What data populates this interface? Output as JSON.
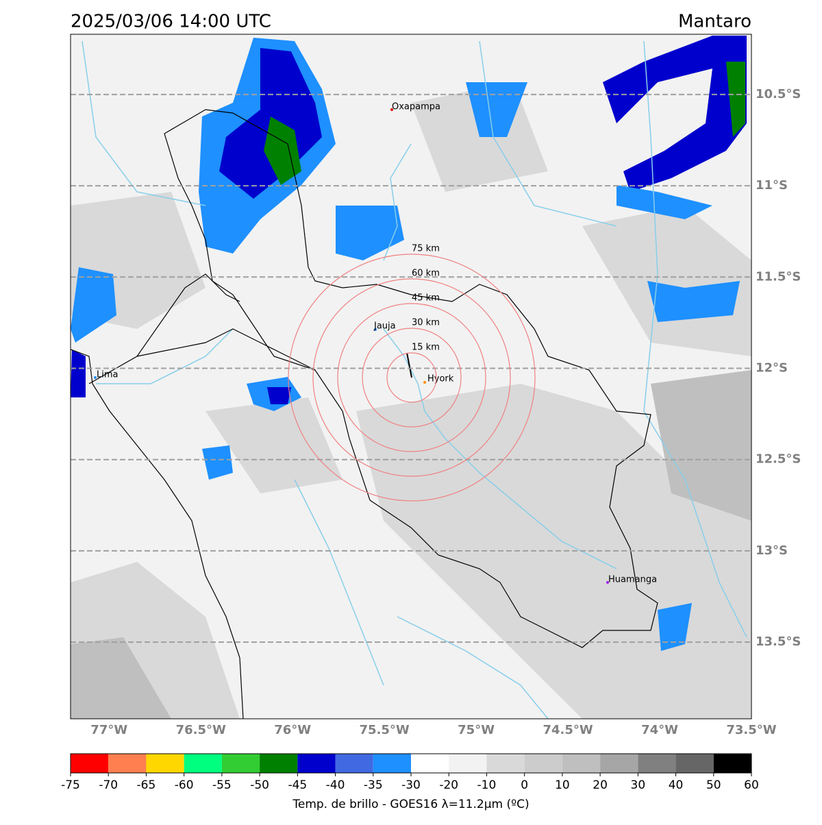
{
  "map": {
    "title_left": "2025/03/06 14:00 UTC",
    "title_right": "Mantaro",
    "xlim": [
      -77.21,
      -73.5
    ],
    "ylim": [
      -13.92,
      -10.17
    ],
    "lat_ticks": [
      {
        "value": -10.5,
        "label": "10.5°S"
      },
      {
        "value": -11,
        "label": "11°S"
      },
      {
        "value": -11.5,
        "label": "11.5°S"
      },
      {
        "value": -12,
        "label": "12°S"
      },
      {
        "value": -12.5,
        "label": "12.5°S"
      },
      {
        "value": -13,
        "label": "13°S"
      },
      {
        "value": -13.5,
        "label": "13.5°S"
      }
    ],
    "lon_ticks": [
      {
        "value": -77,
        "label": "77°W"
      },
      {
        "value": -76.5,
        "label": "76.5°W"
      },
      {
        "value": -76,
        "label": "76°W"
      },
      {
        "value": -75.5,
        "label": "75.5°W"
      },
      {
        "value": -75,
        "label": "75°W"
      },
      {
        "value": -74.5,
        "label": "74.5°W"
      },
      {
        "value": -74,
        "label": "74°W"
      },
      {
        "value": -73.5,
        "label": "73.5°W"
      }
    ],
    "grid": true,
    "places": [
      "Oxapampa",
      "Jauja",
      "Hyork",
      "Lima",
      "Huamanga"
    ],
    "rings": [
      {
        "value": 15,
        "label": "15 km"
      },
      {
        "value": 30,
        "label": "30 km"
      },
      {
        "value": 45,
        "label": "45 km"
      },
      {
        "value": 60,
        "label": "60 km"
      },
      {
        "value": 75,
        "label": "75 km"
      }
    ],
    "ring_color": "#f08080",
    "colorbar": {
      "ticks": [
        -75,
        -70,
        -65,
        -60,
        -55,
        -50,
        -45,
        -40,
        -35,
        -30,
        -20,
        -10,
        0,
        10,
        20,
        30,
        40,
        50,
        60
      ],
      "colors": [
        "#ff0000",
        "#ff7f50",
        "#ffd700",
        "#00ff7f",
        "#32cd32",
        "#008000",
        "#0000cd",
        "#4169e1",
        "#1e90ff",
        "#ffffff",
        "#f2f2f2",
        "#d9d9d9",
        "#cccccc",
        "#bfbfbf",
        "#a6a6a6",
        "#808080",
        "#666666",
        "#000000"
      ],
      "label": "Temp. de brillo - GOES16 λ=11.2μm (ºC)"
    }
  }
}
